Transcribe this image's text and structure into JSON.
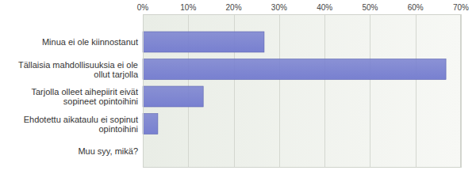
{
  "chart_data": {
    "type": "bar",
    "orientation": "horizontal",
    "categories": [
      "Minua ei ole kiinnostanut",
      "Tällaisia mahdollisuuksia ei ole ollut tarjolla",
      "Tarjolla olleet aihepiirit eivät sopineet opintoihini",
      "Ehdotettu aikataulu ei sopinut opintoihini",
      "Muu syy, mikä?"
    ],
    "values": [
      26.7,
      66.7,
      13.3,
      3.3,
      0
    ],
    "color": "#7880d0",
    "xlim": [
      0,
      70
    ],
    "xticks": [
      {
        "value": 0,
        "label": "0%"
      },
      {
        "value": 10,
        "label": "10%"
      },
      {
        "value": 20,
        "label": "20%"
      },
      {
        "value": 30,
        "label": "30%"
      },
      {
        "value": 40,
        "label": "40%"
      },
      {
        "value": 50,
        "label": "50%"
      },
      {
        "value": 60,
        "label": "60%"
      },
      {
        "value": 70,
        "label": "70%"
      }
    ],
    "grid": true
  }
}
